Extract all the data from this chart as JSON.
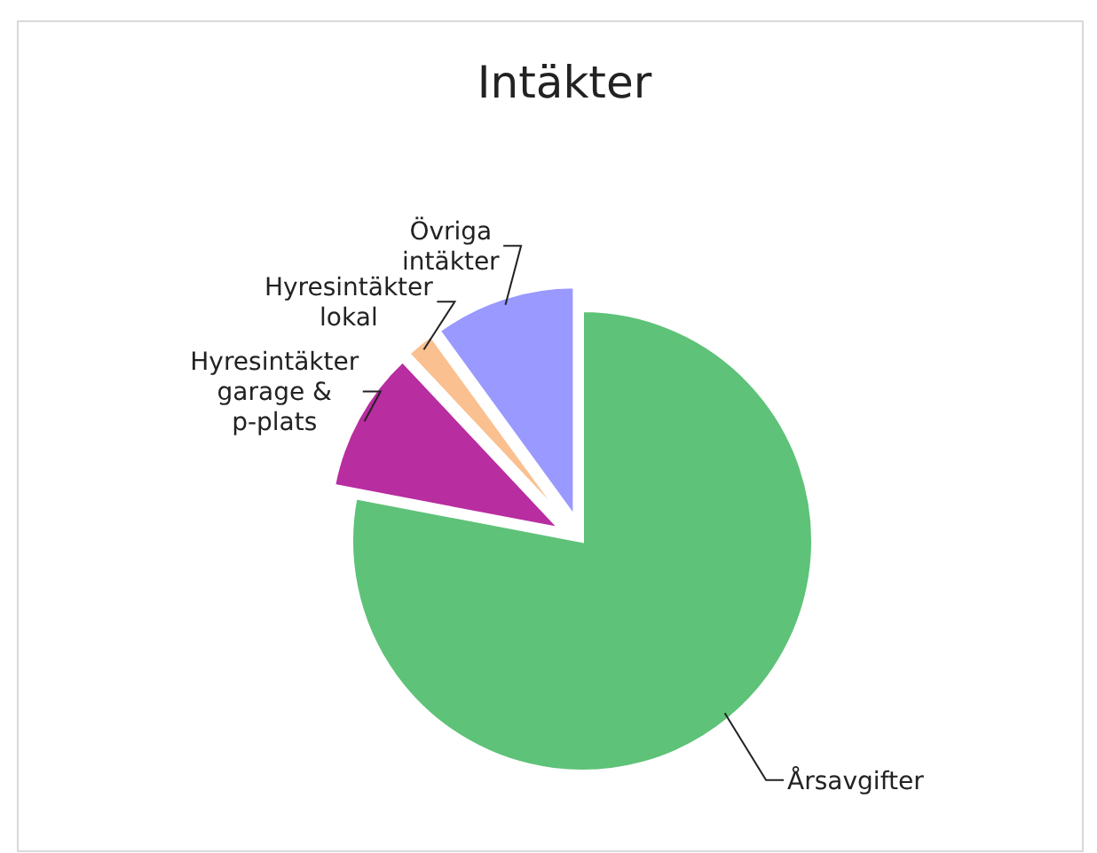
{
  "chart_data": {
    "type": "pie",
    "title": "Intäkter",
    "categories": [
      "Årsavgifter",
      "Hyresintäkter garage & p-plats",
      "Hyresintäkter lokal",
      "Övriga intäkter"
    ],
    "values": [
      78,
      10,
      2,
      10
    ],
    "colors": [
      "#5ec278",
      "#b82da0",
      "#fac090",
      "#9999ff"
    ]
  }
}
